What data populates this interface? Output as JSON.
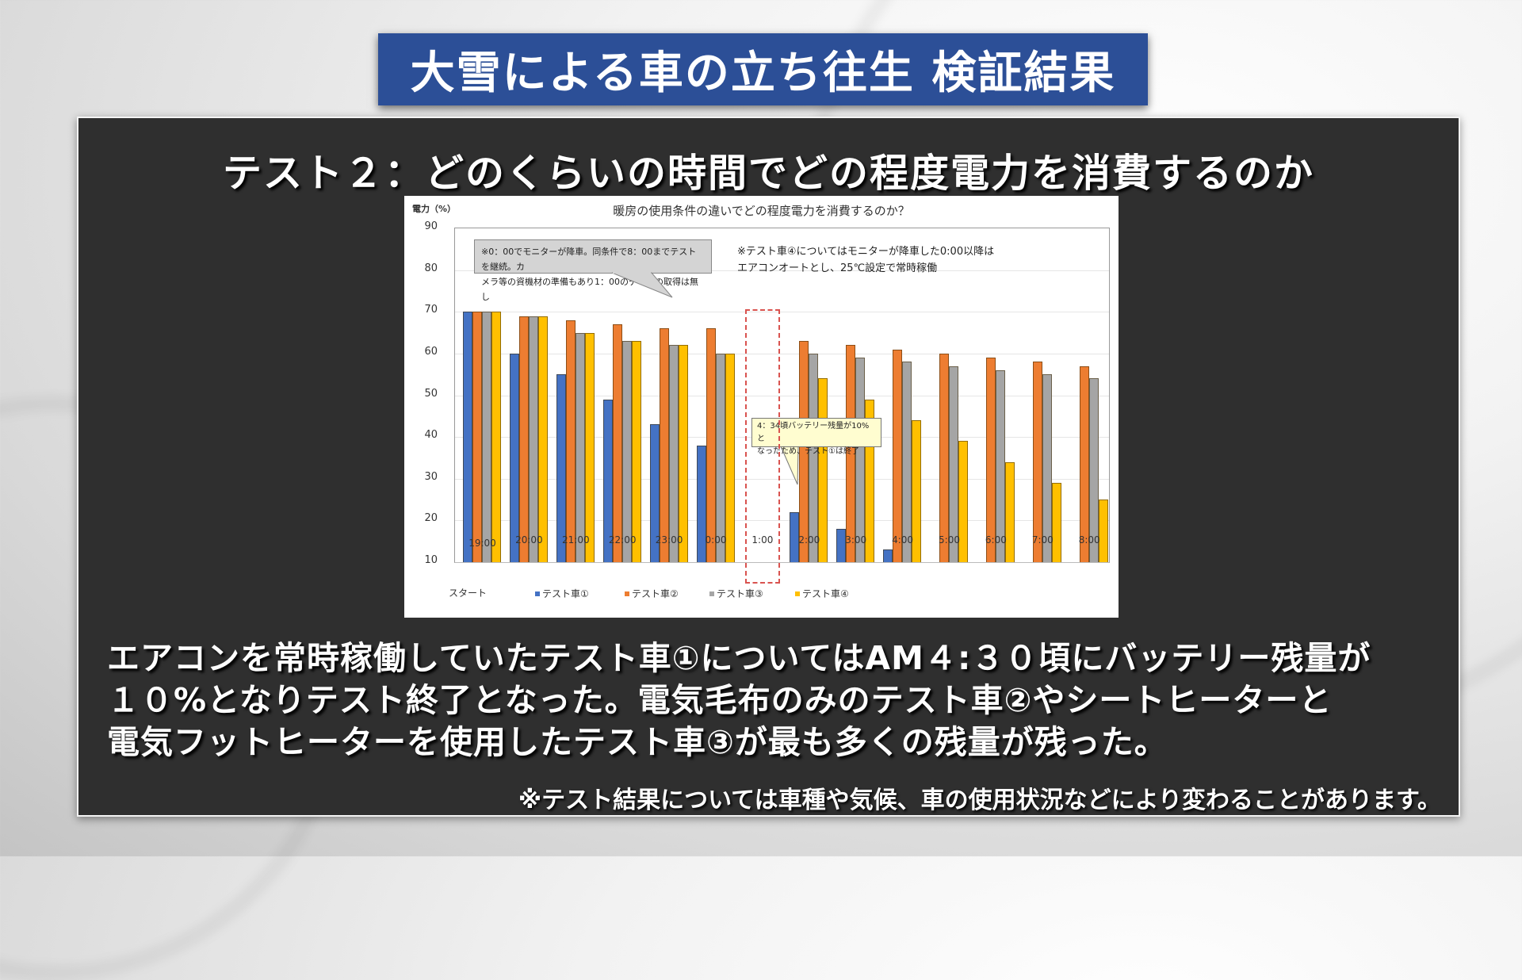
{
  "header": {
    "title": "大雪による車の立ち往生 検証結果"
  },
  "panel": {
    "subtitle": "テスト２：どのくらいの時間でどの程度電力を消費するのか",
    "body_lines": [
      "エアコンを常時稼働していたテスト車①についてはAM４:３０頃にバッテリー残量が",
      "１０%となりテスト終了となった。電気毛布のみのテスト車②やシートヒーターと",
      "電気フットヒーターを使用したテスト車③が最も多くの残量が残った。"
    ],
    "disclaimer": "※テスト結果については車種や気候、車の使用状況などにより変わることがあります。"
  },
  "chart_data": {
    "type": "bar",
    "title": "暖房の使用条件の違いでどの程度電力を消費するのか？",
    "xlabel": "",
    "ylabel": "電力（%）",
    "ylim": [
      10,
      90
    ],
    "yticks": [
      90,
      80,
      70,
      60,
      50,
      40,
      30,
      20,
      10
    ],
    "grid": true,
    "legend_position": "bottom",
    "categories": [
      "19:00",
      "20:00",
      "21:00",
      "22:00",
      "23:00",
      "0:00",
      "1:00",
      "2:00",
      "3:00",
      "4:00",
      "5:00",
      "6:00",
      "7:00",
      "8:00"
    ],
    "category_sublabel": {
      "19:00": "スタート"
    },
    "series": [
      {
        "name": "テスト車①",
        "color": "#4472c4",
        "values": [
          70,
          60,
          55,
          49,
          43,
          38,
          null,
          22,
          18,
          13,
          null,
          null,
          null,
          null
        ]
      },
      {
        "name": "テスト車②",
        "color": "#ed7d31",
        "values": [
          70,
          69,
          68,
          67,
          66,
          66,
          null,
          63,
          62,
          61,
          60,
          59,
          58,
          57
        ]
      },
      {
        "name": "テスト車③",
        "color": "#a5a5a5",
        "values": [
          70,
          69,
          65,
          63,
          62,
          60,
          null,
          60,
          59,
          58,
          57,
          56,
          55,
          54
        ]
      },
      {
        "name": "テスト車④",
        "color": "#ffc000",
        "values": [
          70,
          69,
          65,
          63,
          62,
          60,
          null,
          54,
          49,
          44,
          39,
          34,
          29,
          25
        ]
      }
    ],
    "annotations": [
      {
        "id": "no-data-callout",
        "text_lines": [
          "※0：00でモニターが降車。同条件で8：00までテストを継続。カ",
          "メラ等の資機材の準備もあり1：00のデータの取得は無し"
        ]
      },
      {
        "id": "car4-note",
        "text_lines": [
          "※テスト車④についてはモニターが降車した0:00以降は",
          "エアコンオートとし、25℃設定で常時稼働"
        ]
      },
      {
        "id": "battery-callout",
        "text_lines": [
          "4：34頃バッテリー残量が10%と",
          "なったため、テスト①は終了"
        ]
      }
    ],
    "highlight": {
      "category": "1:00",
      "style": "red dashed box (no data)"
    }
  }
}
